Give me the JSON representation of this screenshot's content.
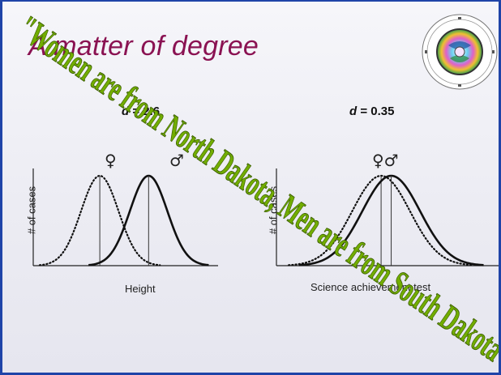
{
  "slide": {
    "title": "A matter of degree",
    "overlay_caption": "\"Women are from North Dakota, Men are from South Dakota\""
  },
  "panels": [
    {
      "effect_symbol": "d",
      "effect_value": " = 2.6",
      "female_symbol": "♀",
      "male_symbol": "♂",
      "y_label": "# of cases",
      "x_label": "Height"
    },
    {
      "effect_symbol": "d",
      "effect_value": " = 0.35",
      "combined_symbol": "♀♂",
      "y_label": "# of cases",
      "x_label": "Science achievement test"
    }
  ],
  "chart_data": [
    {
      "type": "line",
      "d": 2.6,
      "xlabel": "Height",
      "ylabel": "# of cases",
      "series": [
        {
          "name": "♀",
          "mean": 0.0,
          "sd": 1.0,
          "style": "dotted"
        },
        {
          "name": "♂",
          "mean": 2.6,
          "sd": 1.0,
          "style": "solid"
        }
      ]
    },
    {
      "type": "line",
      "d": 0.35,
      "xlabel": "Science achievement test",
      "ylabel": "# of cases",
      "series": [
        {
          "name": "♀",
          "mean": 0.0,
          "sd": 1.0,
          "style": "dotted"
        },
        {
          "name": "♂",
          "mean": 0.35,
          "sd": 1.0,
          "style": "solid"
        }
      ]
    }
  ],
  "colors": {
    "title": "#8a1252",
    "border": "#1f44a8",
    "overlay_text": "#72ad00"
  }
}
